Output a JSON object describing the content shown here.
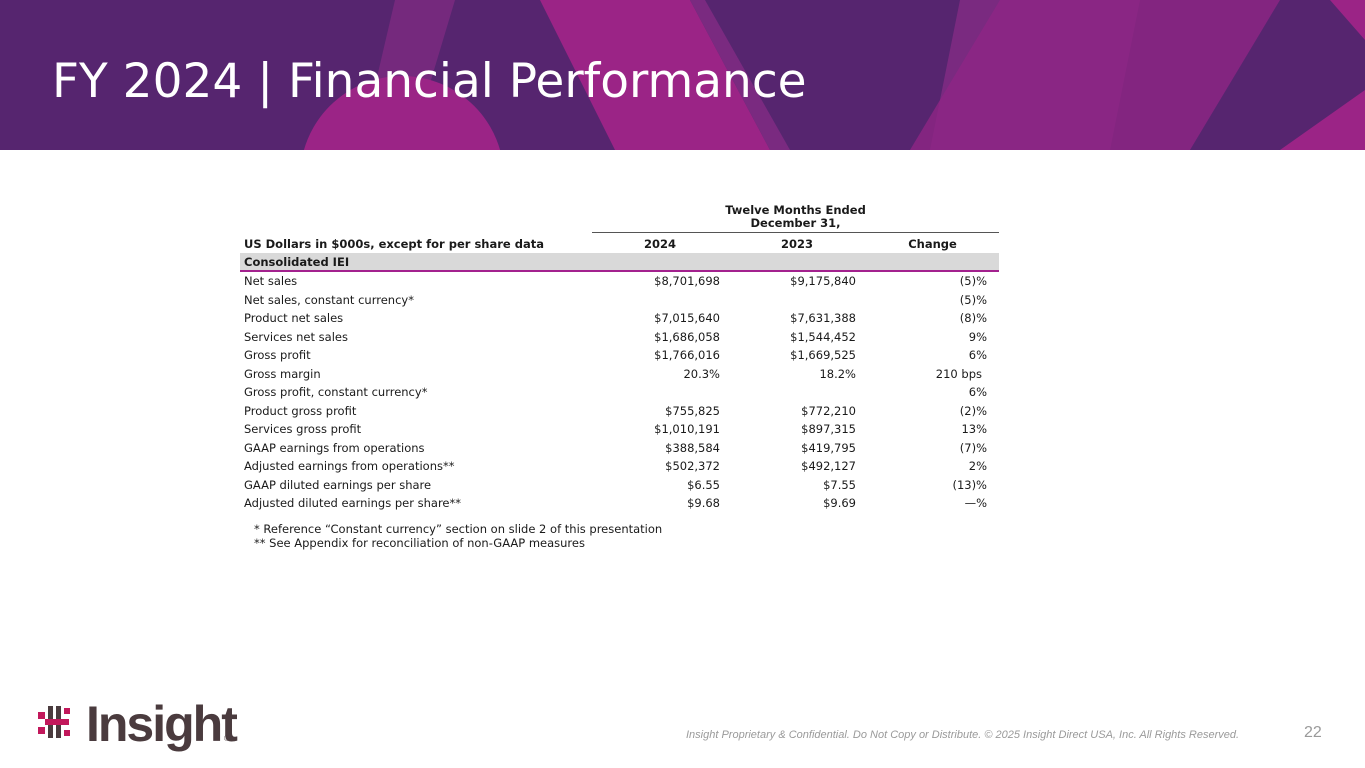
{
  "slide": {
    "title": "FY 2024 | Financial Performance",
    "page_number": "22",
    "footer": "Insight Proprietary & Confidential. Do Not Copy or Distribute. © 2025 Insight Direct USA, Inc. All Rights Reserved."
  },
  "brand": {
    "logo_text": "Insight",
    "registered_mark": "®",
    "colors": {
      "banner": "#56256f",
      "accent": "#a3218e",
      "logo_dots": "#c2185b"
    }
  },
  "table": {
    "period_header": "Twelve Months Ended",
    "period_header_line2": "December 31,",
    "columns": {
      "label": "US Dollars in $000s, except for per share data",
      "y2024": "2024",
      "y2023": "2023",
      "change": "Change"
    },
    "section": "Consolidated IEI",
    "rows": [
      {
        "label": "Net sales",
        "y2024": "$8,701,698",
        "y2023": "$9,175,840",
        "change": "(5)%"
      },
      {
        "label": "Net sales, constant currency*",
        "y2024": "",
        "y2023": "",
        "change": "(5)%"
      },
      {
        "label": "Product net sales",
        "y2024": "$7,015,640",
        "y2023": "$7,631,388",
        "change": "(8)%"
      },
      {
        "label": "Services net sales",
        "y2024": "$1,686,058",
        "y2023": "$1,544,452",
        "change": "9%"
      },
      {
        "label": "Gross profit",
        "y2024": "$1,766,016",
        "y2023": "$1,669,525",
        "change": "6%"
      },
      {
        "label": "Gross margin",
        "y2024": "20.3%",
        "y2023": "18.2%",
        "change": "210 bps"
      },
      {
        "label": "Gross profit, constant currency*",
        "y2024": "",
        "y2023": "",
        "change": "6%"
      },
      {
        "label": "Product gross profit",
        "y2024": "$755,825",
        "y2023": "$772,210",
        "change": "(2)%"
      },
      {
        "label": "Services gross profit",
        "y2024": "$1,010,191",
        "y2023": "$897,315",
        "change": "13%"
      },
      {
        "label": "GAAP earnings from operations",
        "y2024": "$388,584",
        "y2023": "$419,795",
        "change": "(7)%"
      },
      {
        "label": "Adjusted earnings from operations**",
        "y2024": "$502,372",
        "y2023": "$492,127",
        "change": "2%"
      },
      {
        "label": "GAAP diluted earnings per share",
        "y2024": "$6.55",
        "y2023": "$7.55",
        "change": "(13)%"
      },
      {
        "label": "Adjusted diluted earnings per share**",
        "y2024": "$9.68",
        "y2023": "$9.69",
        "change": "—%"
      }
    ]
  },
  "notes": [
    "* Reference “Constant currency” section on slide 2 of this presentation",
    "** See Appendix for reconciliation of non-GAAP measures"
  ]
}
